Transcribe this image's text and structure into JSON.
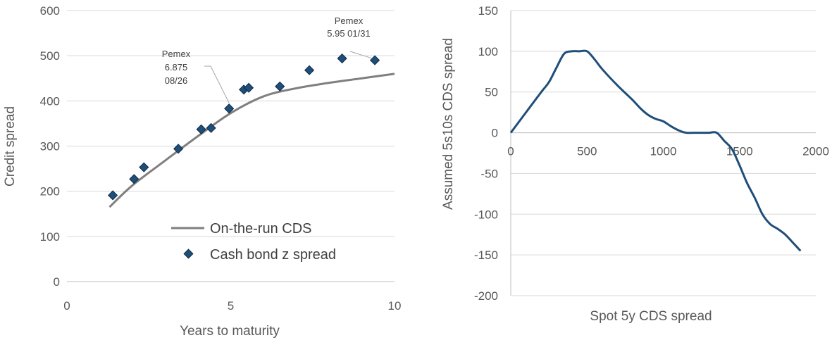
{
  "colors": {
    "cds_line": "#7f7f7f",
    "bond_marker": "#1f4e79",
    "curve": "#1f4e79",
    "grid": "#d9d9d9",
    "axis": "#bfbfbf",
    "text": "#595959"
  },
  "chart_data": [
    {
      "type": "line+scatter",
      "title": "",
      "xlabel": "Years to maturity",
      "ylabel": "Credit spread",
      "xlim": [
        0,
        10
      ],
      "ylim": [
        0,
        600
      ],
      "xticks": [
        "0",
        "5",
        "10"
      ],
      "yticks": [
        "0",
        "100",
        "200",
        "300",
        "400",
        "500",
        "600"
      ],
      "grid": "horizontal",
      "legend_position": "bottom-right",
      "series": [
        {
          "name": "On-the-run CDS",
          "kind": "line",
          "x": [
            1.3,
            2,
            3,
            4,
            5,
            6,
            7,
            8,
            9,
            10
          ],
          "y": [
            165,
            213,
            268,
            322,
            373,
            410,
            428,
            440,
            450,
            460
          ]
        },
        {
          "name": "Cash bond z spread",
          "kind": "scatter",
          "x": [
            1.4,
            2.05,
            2.35,
            3.4,
            4.1,
            4.4,
            4.95,
            5.4,
            5.55,
            6.5,
            7.4,
            8.4,
            9.4
          ],
          "y": [
            191,
            227,
            253,
            294,
            337,
            340,
            383,
            425,
            429,
            432,
            468,
            494,
            490
          ]
        }
      ],
      "annotations": [
        {
          "lines": [
            "Pemex",
            "6.875",
            "08/26"
          ],
          "x": 4.95,
          "y": 383
        },
        {
          "lines": [
            "Pemex",
            "5.95 01/31"
          ],
          "x": 9.4,
          "y": 490
        }
      ]
    },
    {
      "type": "line",
      "title": "",
      "xlabel": "Spot 5y CDS spread",
      "ylabel": "Assumed 5s10s CDS spread",
      "xlim": [
        0,
        2000
      ],
      "ylim": [
        -200,
        150
      ],
      "xticks": [
        "0",
        "500",
        "1000",
        "1500",
        "2000"
      ],
      "yticks": [
        "-200",
        "-150",
        "-100",
        "-50",
        "0",
        "50",
        "100",
        "150"
      ],
      "grid": "horizontal",
      "series": [
        {
          "name": "",
          "x": [
            0,
            100,
            200,
            250,
            300,
            350,
            400,
            450,
            500,
            550,
            600,
            700,
            800,
            850,
            900,
            950,
            1000,
            1050,
            1100,
            1150,
            1200,
            1250,
            1300,
            1350,
            1400,
            1450,
            1500,
            1550,
            1600,
            1650,
            1700,
            1750,
            1800,
            1850,
            1900
          ],
          "y": [
            0,
            25,
            50,
            62,
            80,
            97,
            100,
            100,
            100,
            90,
            78,
            58,
            40,
            30,
            22,
            17,
            14,
            8,
            3,
            0,
            0,
            0,
            0,
            0,
            -10,
            -20,
            -40,
            -62,
            -80,
            -100,
            -112,
            -118,
            -125,
            -135,
            -145
          ]
        }
      ]
    }
  ]
}
